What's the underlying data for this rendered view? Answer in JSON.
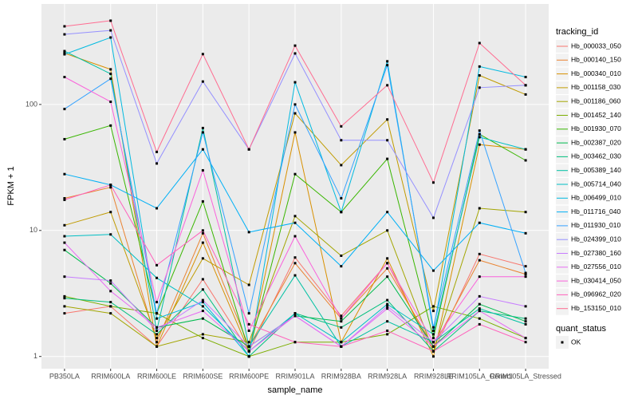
{
  "chart_data": {
    "type": "line",
    "log_y": true,
    "grid": true,
    "legend_position": "right",
    "x_label": "sample_name",
    "y_label": "FPKM + 1",
    "legend_title": "tracking_id",
    "point_legend_title": "quant_status",
    "point_legend_label": "OK",
    "point_color": "#000000",
    "categories": [
      "PB350LA",
      "RRIM600LA",
      "RRIM600LE",
      "RRIM600SE",
      "RRIM600PE",
      "RRIM901LA",
      "RRIM928BA",
      "RRIM928LA",
      "RRIM928LE",
      "RRIM105LA_Control",
      "RRIM105LA_Stressed"
    ],
    "ylim": [
      0.8,
      627
    ],
    "yticks": [
      1,
      10,
      100
    ],
    "series": [
      {
        "name": "Hb_000033_050",
        "color": "#F8766D",
        "values": [
          2.2,
          2.5,
          1.2,
          4.1,
          1.1,
          6.1,
          2.1,
          5.5,
          1.1,
          6.5,
          5.2
        ]
      },
      {
        "name": "Hb_000140_150",
        "color": "#EA8331",
        "values": [
          18,
          22,
          1.3,
          9.5,
          1.2,
          5.5,
          2.0,
          5.0,
          1.2,
          5.8,
          4.5
        ]
      },
      {
        "name": "Hb_000340_010",
        "color": "#D89000",
        "values": [
          255,
          190,
          1.2,
          8.0,
          1.1,
          60,
          1.3,
          6.0,
          1.0,
          48,
          44
        ]
      },
      {
        "name": "Hb_001158_030",
        "color": "#C09B00",
        "values": [
          11,
          14,
          1.4,
          6.0,
          3.7,
          85,
          33,
          76,
          2.3,
          170,
          120
        ]
      },
      {
        "name": "Hb_001186_060",
        "color": "#A3A500",
        "values": [
          2.5,
          2.2,
          1.2,
          1.5,
          1.3,
          13,
          6.3,
          10,
          1.1,
          15,
          14
        ]
      },
      {
        "name": "Hb_001452_140",
        "color": "#7CAE00",
        "values": [
          3.0,
          2.5,
          2.2,
          1.4,
          1.0,
          1.3,
          1.3,
          1.5,
          2.5,
          2.0,
          1.4
        ]
      },
      {
        "name": "Hb_001930_070",
        "color": "#39B600",
        "values": [
          53,
          68,
          2.2,
          17,
          1.1,
          28,
          14,
          37,
          1.4,
          58,
          36
        ]
      },
      {
        "name": "Hb_002387_020",
        "color": "#00BB4E",
        "values": [
          7.0,
          3.8,
          1.7,
          2.0,
          1.2,
          2.1,
          1.9,
          4.3,
          1.2,
          2.6,
          1.9
        ]
      },
      {
        "name": "Hb_003462_030",
        "color": "#00BF7D",
        "values": [
          2.9,
          2.7,
          1.5,
          3.4,
          1.0,
          2.2,
          1.7,
          2.8,
          1.1,
          2.3,
          2.0
        ]
      },
      {
        "name": "Hb_005389_140",
        "color": "#00C1A3",
        "values": [
          265,
          175,
          1.6,
          65,
          1.2,
          4.4,
          1.2,
          1.9,
          1.3,
          2.4,
          1.8
        ]
      },
      {
        "name": "Hb_005714_040",
        "color": "#00BFC4",
        "values": [
          9.0,
          9.3,
          4.2,
          2.5,
          1.1,
          2.2,
          1.3,
          2.6,
          1.5,
          55,
          44
        ]
      },
      {
        "name": "Hb_006499_010",
        "color": "#00BAE0",
        "values": [
          250,
          340,
          2.0,
          2.7,
          1.0,
          150,
          14,
          220,
          1.6,
          200,
          165
        ]
      },
      {
        "name": "Hb_011716_040",
        "color": "#00B0F6",
        "values": [
          28,
          23,
          15,
          44,
          9.7,
          11.5,
          5.2,
          14,
          4.8,
          11.5,
          9.5
        ]
      },
      {
        "name": "Hb_011930_010",
        "color": "#35A2FF",
        "values": [
          92,
          160,
          2.2,
          60,
          2.2,
          100,
          18,
          205,
          1.7,
          62,
          4.6
        ]
      },
      {
        "name": "Hb_024399_010",
        "color": "#9590FF",
        "values": [
          360,
          387,
          34,
          152,
          44,
          254,
          52,
          52,
          12.6,
          136,
          142
        ]
      },
      {
        "name": "Hb_027380_160",
        "color": "#C77CFF",
        "values": [
          4.3,
          4.0,
          1.6,
          2.8,
          1.2,
          2.1,
          1.2,
          2.5,
          1.3,
          3.0,
          2.5
        ]
      },
      {
        "name": "Hb_027556_010",
        "color": "#E76BF3",
        "values": [
          8.0,
          3.3,
          1.7,
          2.3,
          1.1,
          2.1,
          1.2,
          2.4,
          1.2,
          2.3,
          1.4
        ]
      },
      {
        "name": "Hb_030414_050",
        "color": "#FA62DB",
        "values": [
          165,
          105,
          2.7,
          30,
          1.6,
          9.0,
          2.0,
          5.5,
          1.3,
          4.3,
          4.3
        ]
      },
      {
        "name": "Hb_096962_020",
        "color": "#FF62BC",
        "values": [
          17.5,
          23,
          5.3,
          10,
          1.8,
          1.3,
          1.2,
          1.6,
          1.1,
          1.8,
          1.3
        ]
      },
      {
        "name": "Hb_153150_010",
        "color": "#FF6C91",
        "values": [
          417,
          462,
          42,
          251,
          44,
          293,
          67,
          142,
          24,
          307,
          142
        ]
      }
    ]
  }
}
